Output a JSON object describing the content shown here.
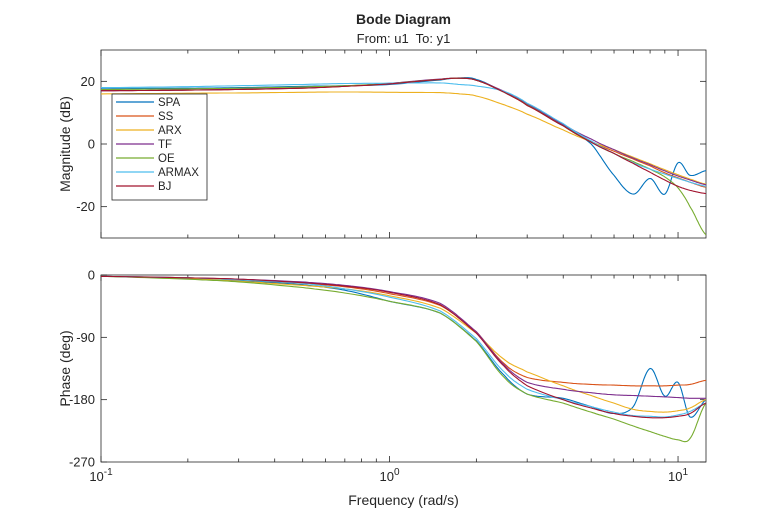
{
  "chart_data": [
    {
      "type": "line",
      "panel": "magnitude",
      "title": "Bode Diagram",
      "subtitle": "From: u1  To: y1",
      "ylabel": "Magnitude (dB)",
      "xscale": "log",
      "xlim": [
        0.1,
        12.5
      ],
      "ylim": [
        -30,
        30
      ],
      "yticks": [
        -20,
        0,
        20
      ],
      "yticklabels": [
        "-20",
        "0",
        "20"
      ],
      "legend_position": "upper-left",
      "x": [
        0.1,
        0.2,
        0.3,
        0.5,
        0.7,
        1.0,
        1.5,
        1.75,
        2.0,
        2.5,
        3.0,
        4.0,
        5.0,
        6.0,
        7.0,
        8.0,
        9.0,
        10.0,
        11.0,
        12.5
      ],
      "series": [
        {
          "name": "SPA",
          "color": "#0072BD",
          "values": [
            17.8,
            17.8,
            18.0,
            18.4,
            18.6,
            19.0,
            20.4,
            21.1,
            20.6,
            16.5,
            12.5,
            6.0,
            0.0,
            -10.0,
            -16.0,
            -11.0,
            -16.0,
            -6.0,
            -10.0,
            -8.5
          ]
        },
        {
          "name": "SS",
          "color": "#D95319",
          "values": [
            17.0,
            17.2,
            17.4,
            17.8,
            18.4,
            19.2,
            20.6,
            21.0,
            20.3,
            16.5,
            12.3,
            5.8,
            0.8,
            -2.3,
            -4.8,
            -7.0,
            -9.2,
            -10.8,
            -12.2,
            -13.8
          ]
        },
        {
          "name": "ARX",
          "color": "#EDB120",
          "values": [
            16.0,
            16.2,
            16.3,
            16.5,
            16.6,
            16.5,
            16.4,
            16.0,
            15.3,
            12.5,
            9.5,
            4.5,
            0.8,
            -1.8,
            -4.2,
            -6.3,
            -8.2,
            -9.8,
            -11.2,
            -12.8
          ]
        },
        {
          "name": "TF",
          "color": "#7E2F8E",
          "values": [
            17.0,
            17.2,
            17.5,
            17.9,
            18.5,
            19.4,
            20.7,
            21.0,
            20.3,
            16.8,
            12.8,
            6.3,
            1.6,
            -1.8,
            -4.5,
            -6.6,
            -8.6,
            -10.2,
            -11.5,
            -13.0
          ]
        },
        {
          "name": "OE",
          "color": "#77AC30",
          "values": [
            17.4,
            17.6,
            17.8,
            18.2,
            18.6,
            19.3,
            20.6,
            21.0,
            20.3,
            16.5,
            12.4,
            5.8,
            0.6,
            -3.0,
            -5.6,
            -8.0,
            -10.5,
            -14.0,
            -20.0,
            -29.0
          ]
        },
        {
          "name": "ARMAX",
          "color": "#4DBEEE",
          "values": [
            18.0,
            18.3,
            18.6,
            19.0,
            19.3,
            19.4,
            19.5,
            19.0,
            18.5,
            16.8,
            13.0,
            6.5,
            1.0,
            -3.0,
            -6.0,
            -8.0,
            -9.6,
            -11.0,
            -12.2,
            -13.5
          ]
        },
        {
          "name": "BJ",
          "color": "#A2142F",
          "values": [
            17.0,
            17.2,
            17.4,
            17.8,
            18.4,
            19.2,
            20.6,
            21.0,
            20.3,
            16.5,
            12.3,
            5.8,
            0.6,
            -3.0,
            -6.2,
            -9.0,
            -11.5,
            -13.5,
            -14.8,
            -15.8
          ]
        }
      ]
    },
    {
      "type": "line",
      "panel": "phase",
      "ylabel": "Phase (deg)",
      "xlabel": "Frequency (rad/s)",
      "xscale": "log",
      "xlim": [
        0.1,
        12.5
      ],
      "ylim": [
        -270,
        0
      ],
      "yticks": [
        -270,
        -180,
        -90,
        0
      ],
      "yticklabels": [
        "-270",
        "-180",
        "-90",
        "0"
      ],
      "xticklabels": [
        {
          "value": 0.1,
          "base": "10",
          "exp": "-1"
        },
        {
          "value": 1,
          "base": "10",
          "exp": "0"
        },
        {
          "value": 10,
          "base": "10",
          "exp": "1"
        }
      ],
      "x": [
        0.1,
        0.2,
        0.3,
        0.5,
        0.7,
        1.0,
        1.5,
        2.0,
        2.5,
        3.0,
        4.0,
        5.0,
        6.0,
        7.0,
        8.0,
        9.0,
        10.0,
        11.0,
        12.5
      ],
      "series": [
        {
          "name": "SPA",
          "color": "#0072BD",
          "values": [
            -2,
            -5,
            -8,
            -14,
            -22,
            -38,
            -55,
            -95,
            -145,
            -172,
            -178,
            -190,
            -200,
            -190,
            -135,
            -175,
            -155,
            -205,
            -180
          ]
        },
        {
          "name": "SS",
          "color": "#D95319",
          "values": [
            -2,
            -4,
            -7,
            -12,
            -17,
            -27,
            -44,
            -82,
            -128,
            -148,
            -155,
            -158,
            -159,
            -160,
            -160,
            -160,
            -159,
            -158,
            -152
          ]
        },
        {
          "name": "ARX",
          "color": "#EDB120",
          "values": [
            -2,
            -5,
            -9,
            -15,
            -20,
            -30,
            -48,
            -84,
            -122,
            -140,
            -160,
            -174,
            -185,
            -194,
            -197,
            -198,
            -196,
            -192,
            -180
          ]
        },
        {
          "name": "TF",
          "color": "#7E2F8E",
          "values": [
            -2,
            -4,
            -6,
            -10,
            -15,
            -24,
            -41,
            -82,
            -130,
            -155,
            -165,
            -170,
            -173,
            -174,
            -175,
            -176,
            -177,
            -178,
            -178
          ]
        },
        {
          "name": "OE",
          "color": "#77AC30",
          "values": [
            -2,
            -6,
            -10,
            -18,
            -26,
            -38,
            -55,
            -96,
            -148,
            -172,
            -185,
            -198,
            -208,
            -218,
            -226,
            -233,
            -238,
            -236,
            -185
          ]
        },
        {
          "name": "ARMAX",
          "color": "#4DBEEE",
          "values": [
            -2,
            -4,
            -7,
            -12,
            -20,
            -32,
            -52,
            -92,
            -140,
            -165,
            -180,
            -190,
            -198,
            -203,
            -204,
            -205,
            -202,
            -197,
            -185
          ]
        },
        {
          "name": "BJ",
          "color": "#A2142F",
          "values": [
            -2,
            -4,
            -6,
            -11,
            -16,
            -25,
            -43,
            -84,
            -132,
            -160,
            -180,
            -192,
            -200,
            -204,
            -206,
            -206,
            -204,
            -200,
            -185
          ]
        }
      ]
    }
  ]
}
